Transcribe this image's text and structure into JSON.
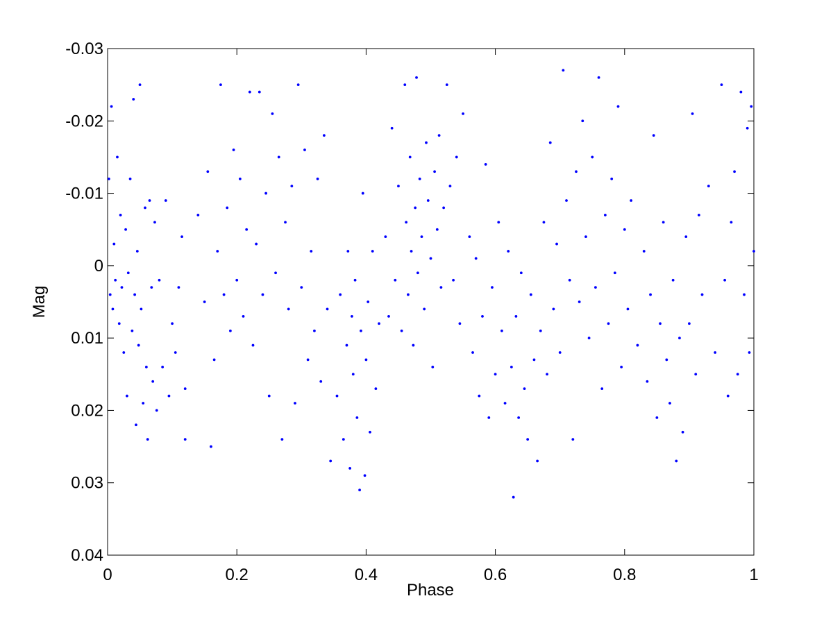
{
  "chart_data": {
    "type": "scatter",
    "x_label": "Phase",
    "y_label": "Mag",
    "xlim": [
      0,
      1
    ],
    "xticks": [
      0,
      0.2,
      0.4,
      0.6,
      0.8,
      1
    ],
    "ylim": [
      -0.03,
      0.04
    ],
    "yticks": [
      -0.03,
      -0.02,
      -0.01,
      0,
      0.01,
      0.02,
      0.03,
      0.04
    ],
    "y_reversed": true,
    "grid": false,
    "color": "#0000ff",
    "x": [
      0.002,
      0.004,
      0.006,
      0.008,
      0.01,
      0.012,
      0.015,
      0.018,
      0.02,
      0.022,
      0.025,
      0.028,
      0.03,
      0.032,
      0.035,
      0.038,
      0.04,
      0.042,
      0.044,
      0.046,
      0.048,
      0.05,
      0.052,
      0.055,
      0.058,
      0.06,
      0.062,
      0.065,
      0.068,
      0.07,
      0.073,
      0.076,
      0.08,
      0.085,
      0.09,
      0.095,
      0.1,
      0.105,
      0.11,
      0.115,
      0.12,
      0.12,
      0.14,
      0.15,
      0.155,
      0.16,
      0.165,
      0.17,
      0.175,
      0.18,
      0.185,
      0.19,
      0.195,
      0.2,
      0.205,
      0.21,
      0.215,
      0.22,
      0.225,
      0.23,
      0.235,
      0.24,
      0.245,
      0.25,
      0.255,
      0.26,
      0.265,
      0.27,
      0.275,
      0.28,
      0.285,
      0.29,
      0.295,
      0.3,
      0.305,
      0.31,
      0.315,
      0.32,
      0.325,
      0.33,
      0.335,
      0.34,
      0.345,
      0.355,
      0.36,
      0.365,
      0.37,
      0.372,
      0.375,
      0.378,
      0.38,
      0.383,
      0.386,
      0.39,
      0.392,
      0.395,
      0.398,
      0.4,
      0.403,
      0.406,
      0.41,
      0.415,
      0.42,
      0.43,
      0.435,
      0.44,
      0.445,
      0.45,
      0.455,
      0.46,
      0.462,
      0.465,
      0.468,
      0.47,
      0.473,
      0.476,
      0.478,
      0.48,
      0.483,
      0.486,
      0.49,
      0.493,
      0.496,
      0.5,
      0.503,
      0.506,
      0.51,
      0.513,
      0.516,
      0.52,
      0.525,
      0.53,
      0.535,
      0.54,
      0.545,
      0.55,
      0.56,
      0.565,
      0.57,
      0.575,
      0.58,
      0.585,
      0.59,
      0.595,
      0.6,
      0.605,
      0.61,
      0.615,
      0.62,
      0.625,
      0.628,
      0.632,
      0.636,
      0.64,
      0.645,
      0.65,
      0.655,
      0.66,
      0.665,
      0.67,
      0.675,
      0.68,
      0.685,
      0.69,
      0.695,
      0.7,
      0.705,
      0.71,
      0.715,
      0.72,
      0.725,
      0.73,
      0.735,
      0.74,
      0.745,
      0.75,
      0.755,
      0.76,
      0.765,
      0.77,
      0.775,
      0.78,
      0.785,
      0.79,
      0.795,
      0.8,
      0.805,
      0.81,
      0.82,
      0.83,
      0.835,
      0.84,
      0.845,
      0.85,
      0.855,
      0.86,
      0.865,
      0.87,
      0.875,
      0.88,
      0.885,
      0.89,
      0.895,
      0.9,
      0.905,
      0.91,
      0.915,
      0.92,
      0.93,
      0.94,
      0.95,
      0.955,
      0.96,
      0.965,
      0.97,
      0.975,
      0.98,
      0.985,
      0.99,
      0.993,
      0.996,
      1.0
    ],
    "values": [
      -0.012,
      0.004,
      -0.022,
      0.006,
      -0.003,
      0.002,
      -0.015,
      0.008,
      -0.007,
      0.003,
      0.012,
      -0.005,
      0.018,
      0.001,
      -0.012,
      0.009,
      -0.023,
      0.004,
      0.022,
      -0.002,
      0.011,
      -0.025,
      0.006,
      0.019,
      -0.008,
      0.014,
      0.024,
      -0.009,
      0.003,
      0.016,
      -0.006,
      0.02,
      0.002,
      0.014,
      -0.009,
      0.018,
      0.008,
      0.012,
      0.003,
      -0.004,
      0.024,
      0.017,
      -0.007,
      0.005,
      -0.013,
      0.025,
      0.013,
      -0.002,
      -0.025,
      0.004,
      -0.008,
      0.009,
      -0.016,
      0.002,
      -0.012,
      0.007,
      -0.005,
      -0.024,
      0.011,
      -0.003,
      -0.024,
      0.004,
      -0.01,
      0.018,
      -0.021,
      0.001,
      -0.015,
      0.024,
      -0.006,
      0.006,
      -0.011,
      0.019,
      -0.025,
      0.003,
      -0.016,
      0.013,
      -0.002,
      0.009,
      -0.012,
      0.016,
      -0.018,
      0.006,
      0.027,
      0.018,
      0.004,
      0.024,
      0.011,
      -0.002,
      0.028,
      0.007,
      0.015,
      0.002,
      0.021,
      0.031,
      0.009,
      -0.01,
      0.029,
      0.013,
      0.005,
      0.023,
      -0.002,
      0.017,
      0.008,
      -0.004,
      0.007,
      -0.019,
      0.002,
      -0.011,
      0.009,
      -0.025,
      -0.006,
      0.004,
      -0.015,
      -0.002,
      0.011,
      -0.008,
      -0.026,
      0.001,
      -0.012,
      -0.004,
      0.006,
      -0.017,
      -0.009,
      -0.001,
      0.014,
      -0.013,
      -0.005,
      -0.018,
      0.003,
      -0.008,
      -0.025,
      -0.011,
      0.002,
      -0.015,
      0.008,
      -0.021,
      -0.004,
      0.012,
      -0.001,
      0.018,
      0.007,
      -0.014,
      0.021,
      0.003,
      0.015,
      -0.006,
      0.009,
      0.019,
      -0.002,
      0.014,
      0.032,
      0.007,
      0.021,
      0.001,
      0.017,
      0.024,
      0.004,
      0.013,
      0.027,
      0.009,
      -0.006,
      0.015,
      -0.017,
      0.006,
      -0.003,
      0.012,
      -0.027,
      -0.009,
      0.002,
      0.024,
      -0.013,
      0.005,
      -0.02,
      -0.004,
      0.01,
      -0.015,
      0.003,
      -0.026,
      0.017,
      -0.007,
      0.008,
      -0.012,
      0.001,
      -0.022,
      0.014,
      -0.005,
      0.006,
      -0.009,
      0.011,
      -0.002,
      0.016,
      0.004,
      -0.018,
      0.021,
      0.008,
      -0.006,
      0.013,
      0.019,
      0.002,
      0.027,
      0.01,
      0.023,
      -0.004,
      0.008,
      -0.021,
      0.015,
      -0.007,
      0.004,
      -0.011,
      0.012,
      -0.025,
      0.002,
      0.018,
      -0.006,
      -0.013,
      0.015,
      -0.024,
      0.004,
      -0.019,
      0.012,
      -0.022,
      -0.002
    ]
  }
}
